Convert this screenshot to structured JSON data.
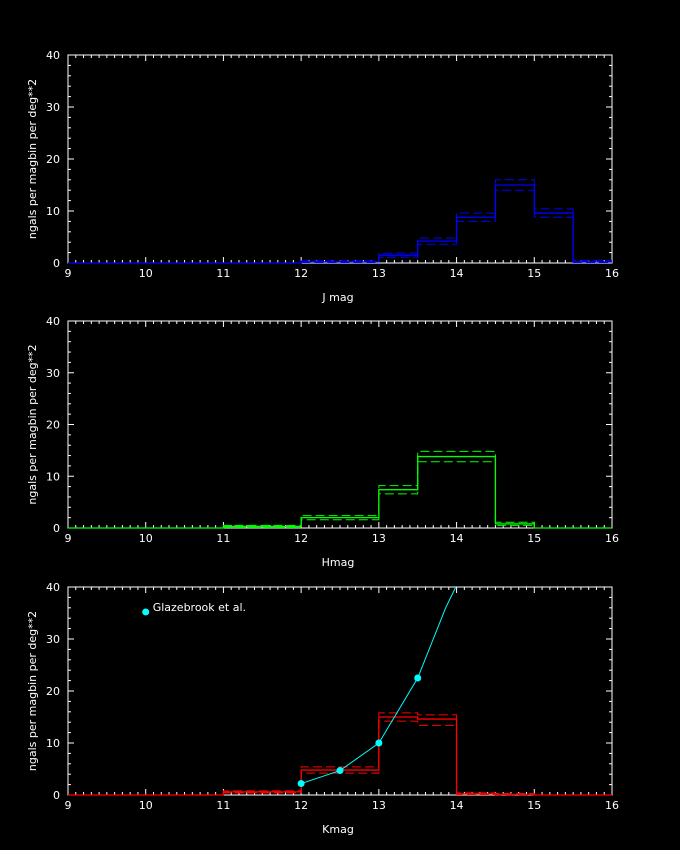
{
  "chart_data": [
    {
      "type": "line",
      "xlabel": "J mag",
      "ylabel": "ngals per magbin per deg**2",
      "xlim": [
        9,
        16
      ],
      "ylim": [
        0,
        40
      ],
      "xticks": [
        9,
        10,
        11,
        12,
        13,
        14,
        15,
        16
      ],
      "yticks": [
        0,
        10,
        20,
        30,
        40
      ],
      "color": "#0000ff",
      "step": {
        "edges": [
          9,
          9.5,
          10,
          10.5,
          11,
          11.5,
          12,
          12.5,
          13,
          13.5,
          14,
          14.5,
          15,
          15.5,
          16
        ],
        "values": [
          0,
          0,
          0,
          0,
          0,
          0,
          0.2,
          0.2,
          1.5,
          4.2,
          8.8,
          15.0,
          9.6,
          0.2
        ],
        "upper": [
          0,
          0,
          0,
          0,
          0,
          0,
          0.4,
          0.4,
          1.9,
          4.8,
          9.6,
          16.0,
          10.4,
          0.5
        ],
        "lower": [
          0,
          0,
          0,
          0,
          0,
          0,
          0.1,
          0.1,
          1.1,
          3.6,
          8.0,
          14.0,
          8.8,
          0.1
        ]
      }
    },
    {
      "type": "line",
      "xlabel": "Hmag",
      "ylabel": "ngals per magbin per deg**2",
      "xlim": [
        9,
        16
      ],
      "ylim": [
        0,
        40
      ],
      "xticks": [
        9,
        10,
        11,
        12,
        13,
        14,
        15,
        16
      ],
      "yticks": [
        0,
        10,
        20,
        30,
        40
      ],
      "color": "#00ff00",
      "step": {
        "edges": [
          9,
          9.5,
          10,
          10.5,
          11,
          11.5,
          12,
          12.5,
          13,
          13.5,
          14,
          14.5,
          15,
          15.5,
          16
        ],
        "values": [
          0,
          0,
          0,
          0,
          0.3,
          0.3,
          2.0,
          2.0,
          7.4,
          13.8,
          13.8,
          0.8,
          0,
          0
        ],
        "upper": [
          0,
          0,
          0,
          0,
          0.5,
          0.5,
          2.4,
          2.4,
          8.2,
          14.8,
          14.8,
          1.1,
          0,
          0
        ],
        "lower": [
          0,
          0,
          0,
          0,
          0.1,
          0.1,
          1.6,
          1.6,
          6.6,
          12.8,
          12.8,
          0.5,
          0,
          0
        ]
      }
    },
    {
      "type": "line",
      "xlabel": "Kmag",
      "ylabel": "ngals per magbin per deg**2",
      "xlim": [
        9,
        16
      ],
      "ylim": [
        0,
        40
      ],
      "xticks": [
        9,
        10,
        11,
        12,
        13,
        14,
        15,
        16
      ],
      "yticks": [
        0,
        10,
        20,
        30,
        40
      ],
      "color": "#ff0000",
      "step": {
        "edges": [
          9,
          9.5,
          10,
          10.5,
          11,
          11.5,
          12,
          12.5,
          13,
          13.5,
          14,
          14.5,
          15,
          15.5,
          16
        ],
        "values": [
          0,
          0,
          0,
          0,
          0.6,
          0.6,
          4.8,
          4.8,
          15.0,
          14.6,
          0.2,
          0.1,
          0,
          0
        ],
        "upper": [
          0,
          0,
          0,
          0,
          0.8,
          0.8,
          5.4,
          5.4,
          15.8,
          15.4,
          0.4,
          0.3,
          0,
          0
        ],
        "lower": [
          0,
          0,
          0,
          0,
          0.4,
          0.4,
          4.2,
          4.2,
          14.2,
          13.4,
          0.1,
          0.05,
          0,
          0
        ]
      },
      "comparison": {
        "name": "Glazebrook et al.",
        "color": "#00ffff",
        "points": [
          [
            12.0,
            2.2
          ],
          [
            12.5,
            4.7
          ],
          [
            13.0,
            10.0
          ],
          [
            13.5,
            22.5
          ]
        ],
        "curve": [
          [
            12.0,
            2.2
          ],
          [
            12.5,
            4.7
          ],
          [
            13.0,
            10.0
          ],
          [
            13.5,
            22.5
          ],
          [
            13.7,
            30.0
          ],
          [
            13.86,
            36.0
          ],
          [
            13.99,
            40.0
          ]
        ],
        "legend_marker": [
          10.0,
          35.2
        ]
      }
    }
  ]
}
